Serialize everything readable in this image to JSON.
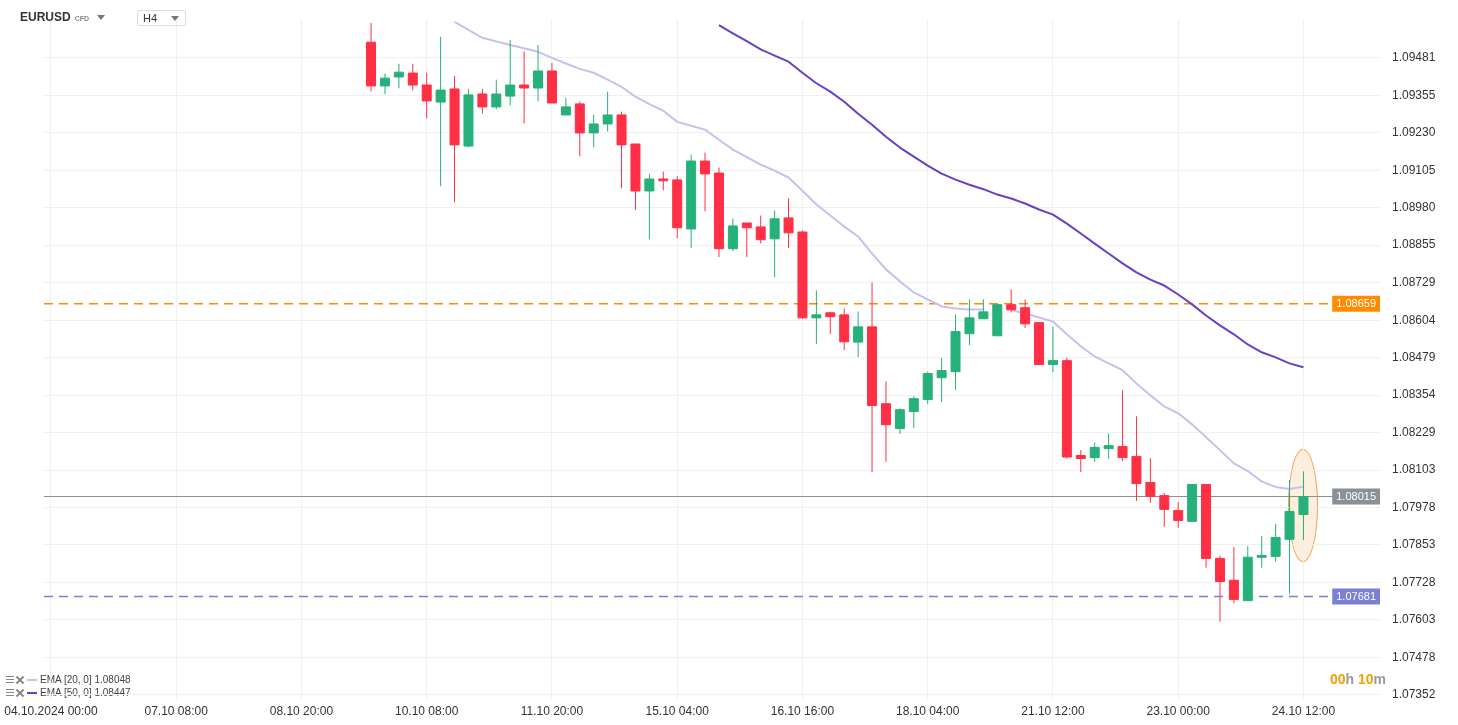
{
  "chart_data": {
    "type": "candlestick",
    "title": "EURUSD",
    "subtitle": "CFD",
    "categories": [
      "04.10.2024 00:00",
      null,
      null,
      null,
      null,
      null,
      null,
      null,
      null,
      "07.10 08:00",
      null,
      null,
      null,
      null,
      null,
      null,
      null,
      null,
      "08.10 20:00",
      null,
      null,
      null,
      null,
      null,
      null,
      null,
      null,
      "10.10 08:00",
      null,
      null,
      null,
      null,
      null,
      null,
      null,
      null,
      "11.10 20:00",
      null,
      null,
      null,
      null,
      null,
      null,
      null,
      null,
      "15.10 04:00",
      null,
      null,
      null,
      null,
      null,
      null,
      null,
      null,
      "16.10 16:00",
      null,
      null,
      null,
      null,
      null,
      null,
      null,
      null,
      "18.10 04:00",
      null,
      null,
      null,
      null,
      null,
      null,
      null,
      null,
      "21.10 12:00",
      null,
      null,
      null,
      null,
      null,
      null,
      null,
      null,
      "23.10 00:00",
      null,
      null,
      null,
      null,
      null,
      null,
      null,
      null,
      "24.10 12:00",
      null,
      null,
      null,
      null,
      null
    ],
    "ohlc": [
      null,
      null,
      null,
      null,
      null,
      null,
      null,
      null,
      null,
      null,
      null,
      null,
      null,
      null,
      null,
      null,
      null,
      null,
      null,
      null,
      null,
      null,
      null,
      [
        1.09533,
        1.09597,
        1.09369,
        1.09387
      ],
      [
        1.09387,
        1.09428,
        1.09359,
        1.09413
      ],
      [
        1.09417,
        1.09461,
        1.09379,
        1.09433
      ],
      [
        1.0943,
        1.09461,
        1.09372,
        1.0939
      ],
      [
        1.0939,
        1.09431,
        1.09279,
        1.09337
      ],
      [
        1.09333,
        1.09551,
        1.09052,
        1.09373
      ],
      [
        1.09377,
        1.0942,
        1.08998,
        1.0919
      ],
      [
        1.09186,
        1.09377,
        1.09182,
        1.09357
      ],
      [
        1.0936,
        1.09377,
        1.09295,
        1.09317
      ],
      [
        1.09317,
        1.09408,
        1.09309,
        1.0936
      ],
      [
        1.09353,
        1.09541,
        1.09322,
        1.0939
      ],
      [
        1.0939,
        1.09502,
        1.09262,
        1.0938
      ],
      [
        1.0938,
        1.09524,
        1.09335,
        1.09437
      ],
      [
        1.09437,
        1.09464,
        1.0933,
        1.0933
      ],
      [
        1.0929,
        1.09347,
        1.0929,
        1.09317
      ],
      [
        1.09327,
        1.09335,
        1.09152,
        1.0923
      ],
      [
        1.0923,
        1.09291,
        1.09182,
        1.0926
      ],
      [
        1.0926,
        1.09368,
        1.09235,
        1.0929
      ],
      [
        1.0929,
        1.09301,
        1.09045,
        1.0919
      ],
      [
        1.09193,
        1.09193,
        1.08972,
        1.09036
      ],
      [
        1.09036,
        1.09094,
        1.08875,
        1.09076
      ],
      [
        1.09076,
        1.09101,
        1.09038,
        1.0907
      ],
      [
        1.09073,
        1.09086,
        1.08878,
        1.08913
      ],
      [
        1.08909,
        1.09157,
        1.08845,
        1.09136
      ],
      [
        1.09136,
        1.09164,
        1.08968,
        1.09093
      ],
      [
        1.09096,
        1.09114,
        1.08815,
        1.08843
      ],
      [
        1.08843,
        1.08944,
        1.08835,
        1.08919
      ],
      [
        1.08929,
        1.08929,
        1.08815,
        1.08913
      ],
      [
        1.08916,
        1.08954,
        1.08861,
        1.08873
      ],
      [
        1.08876,
        1.08971,
        1.08748,
        1.08943
      ],
      [
        1.08946,
        1.09011,
        1.08845,
        1.08896
      ],
      [
        1.08899,
        1.08904,
        1.08609,
        1.08612
      ],
      [
        1.08612,
        1.08704,
        1.08524,
        1.08622
      ],
      [
        1.08629,
        1.08633,
        1.08558,
        1.08616
      ],
      [
        1.08622,
        1.08643,
        1.08504,
        1.08532
      ],
      [
        1.08531,
        1.08633,
        1.08481,
        1.08582
      ],
      [
        1.08582,
        1.0873,
        1.08097,
        1.08319
      ],
      [
        1.08325,
        1.084,
        1.08131,
        1.08255
      ],
      [
        1.08242,
        1.08309,
        1.08224,
        1.08305
      ],
      [
        1.08299,
        1.0835,
        1.08244,
        1.08342
      ],
      [
        1.08339,
        1.08432,
        1.08324,
        1.08426
      ],
      [
        1.08412,
        1.08477,
        1.08331,
        1.08436
      ],
      [
        1.08432,
        1.08623,
        1.08371,
        1.08566
      ],
      [
        1.08559,
        1.08674,
        1.08521,
        1.08612
      ],
      [
        1.08609,
        1.08674,
        1.08609,
        1.08632
      ],
      [
        1.08552,
        1.08659,
        1.08552,
        1.08656
      ],
      [
        1.08656,
        1.08707,
        1.0863,
        1.08639
      ],
      [
        1.08646,
        1.08674,
        1.08578,
        1.08592
      ],
      [
        1.08596,
        1.08596,
        1.08456,
        1.08456
      ],
      [
        1.08456,
        1.08583,
        1.08431,
        1.08469
      ],
      [
        1.08469,
        1.08479,
        1.08141,
        1.08147
      ],
      [
        1.08152,
        1.0817,
        1.08097,
        1.08142
      ],
      [
        1.08145,
        1.08195,
        1.08131,
        1.08179
      ],
      [
        1.08175,
        1.08226,
        1.08141,
        1.08185
      ],
      [
        1.08182,
        1.0837,
        1.08133,
        1.08145
      ],
      [
        1.08149,
        1.08283,
        1.08,
        1.08058
      ],
      [
        1.08062,
        1.08143,
        1.07994,
        1.08015
      ],
      [
        1.08018,
        1.08026,
        1.07914,
        1.07972
      ],
      [
        1.07968,
        1.07996,
        1.0791,
        1.07935
      ],
      [
        1.07932,
        1.08055,
        1.07932,
        1.08055
      ],
      [
        1.08055,
        1.08055,
        1.07777,
        1.07808
      ],
      [
        1.07808,
        1.07818,
        1.07597,
        1.07731
      ],
      [
        1.07735,
        1.07846,
        1.07658,
        1.07671
      ],
      [
        1.07667,
        1.07849,
        1.07667,
        1.07812
      ],
      [
        1.07812,
        1.07883,
        1.07777,
        1.07818
      ],
      [
        1.07815,
        1.07923,
        1.07797,
        1.07878
      ],
      [
        1.07872,
        1.0807,
        1.0769,
        1.07965
      ],
      [
        1.07955,
        1.08099,
        1.0787,
        1.08015
      ],
      null,
      null,
      null,
      null,
      null
    ],
    "colors": [
      null,
      null,
      null,
      null,
      null,
      null,
      null,
      null,
      null,
      null,
      null,
      null,
      null,
      null,
      null,
      null,
      null,
      null,
      null,
      null,
      null,
      null,
      null,
      "#ff3045",
      "#26b07a",
      "#26b07a",
      "#ff3045",
      "#ff3045",
      "#26b07a",
      "#ff3045",
      "#26b07a",
      "#ff3045",
      "#26b07a",
      "#26b07a",
      "#ff3045",
      "#26b07a",
      "#ff3045",
      "#26b07a",
      "#ff3045",
      "#26b07a",
      "#26b07a",
      "#ff3045",
      "#ff3045",
      "#26b07a",
      "#ff3045",
      "#ff3045",
      "#26b07a",
      "#ff3045",
      "#ff3045",
      "#26b07a",
      "#ff3045",
      "#ff3045",
      "#26b07a",
      "#ff3045",
      "#ff3045",
      "#26b07a",
      "#ff3045",
      "#ff3045",
      "#26b07a",
      "#ff3045",
      "#ff3045",
      "#26b07a",
      "#26b07a",
      "#26b07a",
      "#26b07a",
      "#26b07a",
      "#26b07a",
      "#26b07a",
      "#26b07a",
      "#ff3045",
      "#ff3045",
      "#ff3045",
      "#26b07a",
      "#ff3045",
      "#ff3045",
      "#26b07a",
      "#26b07a",
      "#ff3045",
      "#ff3045",
      "#ff3045",
      "#ff3045",
      "#ff3045",
      "#26b07a",
      "#ff3045",
      "#ff3045",
      "#ff3045",
      "#26b07a",
      "#26b07a",
      "#26b07a",
      "#26b07a",
      "#26b07a",
      null,
      null,
      null,
      null,
      null
    ],
    "series": [
      {
        "type": "line",
        "name": "EMA [20, 0] 1.08048",
        "color": "#c8c0ec",
        "values": [
          null,
          null,
          null,
          null,
          null,
          null,
          null,
          null,
          null,
          null,
          null,
          null,
          null,
          null,
          null,
          null,
          null,
          null,
          null,
          null,
          null,
          null,
          null,
          null,
          null,
          null,
          null,
          null,
          null,
          1.09601,
          1.09574,
          1.09548,
          1.09536,
          1.09524,
          1.09513,
          1.09501,
          1.09481,
          1.09462,
          1.09444,
          1.09431,
          1.09408,
          1.09384,
          1.09351,
          1.09326,
          1.09304,
          1.09267,
          1.09254,
          1.09241,
          1.09207,
          1.09174,
          1.09149,
          1.09124,
          1.09104,
          1.09081,
          1.09037,
          1.08991,
          1.08954,
          1.08917,
          1.08884,
          1.08827,
          1.08774,
          1.08734,
          1.08697,
          1.08674,
          1.0865,
          1.08643,
          1.0864,
          1.0864,
          null,
          1.08638,
          1.08627,
          1.08613,
          1.086,
          1.08557,
          1.08517,
          1.08483,
          1.0846,
          1.08437,
          1.08393,
          1.08353,
          1.08316,
          1.08293,
          1.08256,
          1.08213,
          1.0817,
          1.08126,
          1.081,
          1.08065,
          1.08047,
          1.0804,
          1.08048,
          null,
          null,
          null,
          null,
          null
        ]
      },
      {
        "type": "line",
        "name": "EMA [50, 0] 1.08447",
        "color": "#6a3fc4",
        "values": [
          null,
          null,
          null,
          null,
          null,
          null,
          null,
          null,
          null,
          null,
          null,
          null,
          null,
          null,
          null,
          null,
          null,
          null,
          null,
          null,
          null,
          null,
          null,
          null,
          null,
          null,
          null,
          null,
          null,
          null,
          null,
          null,
          null,
          null,
          null,
          null,
          null,
          null,
          null,
          null,
          null,
          null,
          null,
          null,
          null,
          null,
          null,
          null,
          1.0959,
          1.09563,
          1.09537,
          1.09509,
          1.09488,
          1.09468,
          1.09431,
          1.09396,
          1.09368,
          1.09334,
          1.09294,
          1.09257,
          1.09217,
          1.09181,
          1.09151,
          1.09121,
          1.09094,
          1.09074,
          1.09057,
          1.09042,
          1.09024,
          1.09011,
          1.08994,
          1.08974,
          1.08957,
          1.08927,
          1.08894,
          1.0886,
          1.08827,
          1.08794,
          1.08764,
          1.0874,
          1.0872,
          1.0869,
          1.08657,
          1.0862,
          1.08587,
          1.08557,
          1.08523,
          1.08497,
          1.0848,
          1.0846,
          1.08447,
          null,
          null,
          null,
          null,
          null
        ]
      }
    ],
    "ylim": [
      1.07335,
      1.0961
    ],
    "yticks": [
      1.09481,
      1.09355,
      {
        "value": 1.0923,
        "label": "1.09230"
      },
      1.09105,
      {
        "value": 1.0898,
        "label": "1.08980"
      },
      1.08855,
      1.08729,
      1.08604,
      1.08479,
      1.08354,
      1.08229,
      1.08103,
      1.07978,
      1.07853,
      1.07728,
      1.07603,
      1.07478,
      1.07352
    ],
    "grid": true,
    "legend": "bottom left",
    "marker": "none",
    "ref_lines": [
      {
        "axis": "y",
        "value": 1.08659,
        "label": "1.08659",
        "color": "#ff8c00",
        "line_style": "dashed"
      },
      {
        "axis": "y",
        "value": 1.08015,
        "label": "1.08015",
        "color": "#8a9095",
        "line_style": "solid"
      },
      {
        "axis": "y",
        "value": 1.07681,
        "label": "1.07681",
        "color": "#7b80d0",
        "line_style": "dashed"
      }
    ],
    "annotations": [
      "H4",
      "00h 10m"
    ]
  }
}
